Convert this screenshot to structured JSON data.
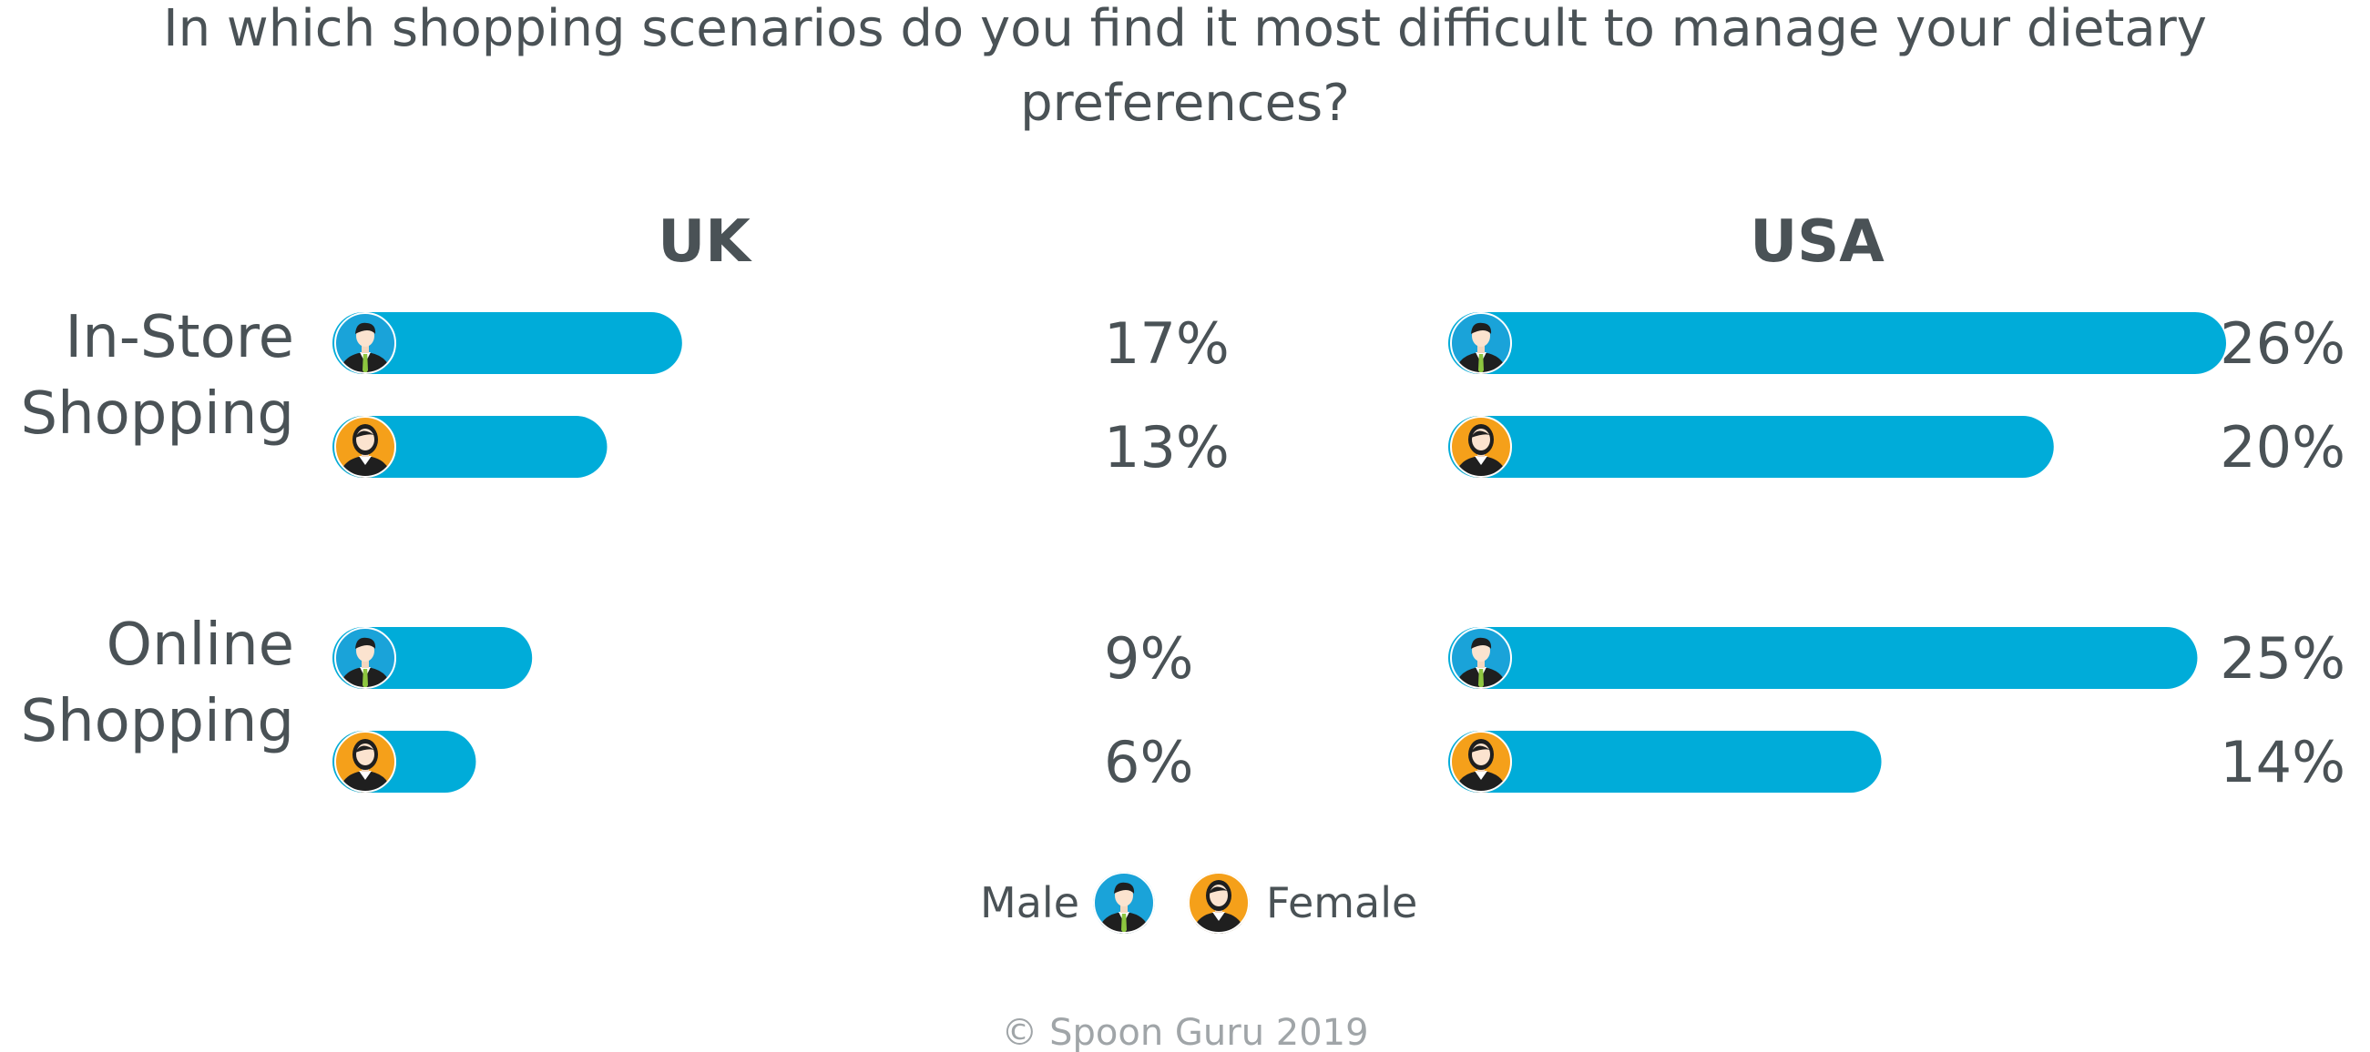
{
  "chart_data": {
    "type": "bar",
    "title": "In which shopping scenarios do you find it most difficult to manage your dietary preferences?",
    "title_lines": [
      "In which shopping scenarios do you find it most difficult to manage your dietary",
      "preferences?"
    ],
    "panels": [
      {
        "name": "UK"
      },
      {
        "name": "USA"
      }
    ],
    "categories": [
      {
        "label_lines": [
          "In-Store",
          "Shopping"
        ]
      },
      {
        "label_lines": [
          "Online",
          "Shopping"
        ]
      }
    ],
    "series": [
      {
        "name": "Male",
        "icon": "male-avatar-icon",
        "color": "#1aa3d9",
        "values": {
          "UK": [
            17,
            9
          ],
          "USA": [
            26,
            25
          ]
        },
        "labels": {
          "UK": [
            "17%",
            "9%"
          ],
          "USA": [
            "26%",
            "25%"
          ]
        }
      },
      {
        "name": "Female",
        "icon": "female-avatar-icon",
        "color": "#f5a01a",
        "values": {
          "UK": [
            13,
            6
          ],
          "USA": [
            20,
            14
          ]
        },
        "labels": {
          "UK": [
            "13%",
            "6%"
          ],
          "USA": [
            "20%",
            "14%"
          ]
        }
      }
    ],
    "unit": "%",
    "ylim": [
      0,
      26
    ],
    "bar_color": "#00acd9",
    "legend": {
      "placement": "bottom-center",
      "items": [
        "Male",
        "Female"
      ]
    },
    "footer": "© Spoon Guru 2019"
  }
}
